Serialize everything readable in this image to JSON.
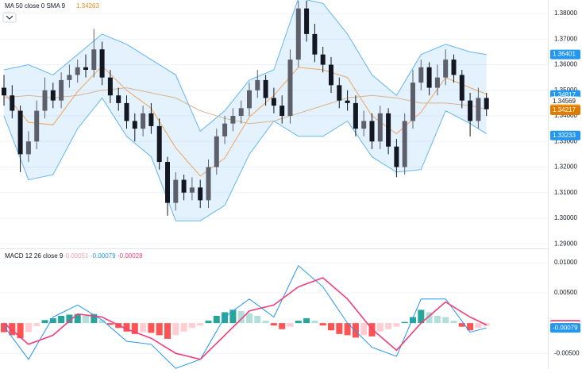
{
  "chart_data": [
    {
      "type": "candlestick",
      "title": "MA 50 close 0 SMA 9",
      "legend_value": 1.34263,
      "legend_color": "#e08a1e",
      "up_color": "#5d606b",
      "down_color": "#131722",
      "open": [
        1.351,
        1.348,
        1.342,
        1.325,
        1.33,
        1.342,
        1.35,
        1.346,
        1.354,
        1.356,
        1.359,
        1.358,
        1.366,
        1.355,
        1.348,
        1.345,
        1.338,
        1.335,
        1.341,
        1.336,
        1.322,
        1.306,
        1.315,
        1.31,
        1.312,
        1.307,
        1.32,
        1.332,
        1.337,
        1.34,
        1.343,
        1.35,
        1.354,
        1.347,
        1.344,
        1.34,
        1.362,
        1.382,
        1.372,
        1.364,
        1.36,
        1.352,
        1.346,
        1.345,
        1.335,
        1.338,
        1.33,
        1.341,
        1.328,
        1.32,
        1.338,
        1.353,
        1.359,
        1.351,
        1.355,
        1.362,
        1.356,
        1.346,
        1.338,
        1.347
      ],
      "high": [
        1.356,
        1.352,
        1.344,
        1.334,
        1.346,
        1.355,
        1.353,
        1.357,
        1.36,
        1.362,
        1.364,
        1.374,
        1.369,
        1.358,
        1.351,
        1.348,
        1.341,
        1.344,
        1.345,
        1.339,
        1.324,
        1.318,
        1.317,
        1.316,
        1.315,
        1.323,
        1.335,
        1.34,
        1.343,
        1.346,
        1.353,
        1.358,
        1.356,
        1.351,
        1.348,
        1.366,
        1.385,
        1.385,
        1.376,
        1.367,
        1.363,
        1.355,
        1.35,
        1.348,
        1.342,
        1.341,
        1.344,
        1.343,
        1.331,
        1.341,
        1.358,
        1.362,
        1.361,
        1.36,
        1.366,
        1.364,
        1.358,
        1.349,
        1.351,
        1.349
      ],
      "low": [
        1.344,
        1.339,
        1.318,
        1.322,
        1.327,
        1.339,
        1.343,
        1.343,
        1.351,
        1.353,
        1.355,
        1.355,
        1.352,
        1.345,
        1.342,
        1.335,
        1.33,
        1.332,
        1.333,
        1.319,
        1.301,
        1.303,
        1.307,
        1.307,
        1.304,
        1.304,
        1.317,
        1.329,
        1.334,
        1.337,
        1.34,
        1.347,
        1.344,
        1.341,
        1.337,
        1.337,
        1.359,
        1.369,
        1.361,
        1.357,
        1.349,
        1.343,
        1.342,
        1.332,
        1.332,
        1.327,
        1.327,
        1.325,
        1.316,
        1.317,
        1.335,
        1.35,
        1.348,
        1.348,
        1.352,
        1.353,
        1.343,
        1.332,
        1.335,
        1.34
      ],
      "close": [
        1.348,
        1.342,
        1.325,
        1.33,
        1.342,
        1.35,
        1.346,
        1.354,
        1.356,
        1.359,
        1.358,
        1.366,
        1.355,
        1.348,
        1.345,
        1.338,
        1.335,
        1.341,
        1.336,
        1.322,
        1.306,
        1.315,
        1.31,
        1.312,
        1.307,
        1.32,
        1.332,
        1.337,
        1.34,
        1.343,
        1.35,
        1.354,
        1.347,
        1.344,
        1.34,
        1.362,
        1.382,
        1.372,
        1.364,
        1.36,
        1.352,
        1.346,
        1.345,
        1.335,
        1.338,
        1.33,
        1.341,
        1.328,
        1.32,
        1.338,
        1.353,
        1.359,
        1.351,
        1.355,
        1.362,
        1.356,
        1.346,
        1.338,
        1.347,
        1.3426
      ],
      "overlays": {
        "x": [
          0,
          3,
          6,
          9,
          12,
          15,
          18,
          21,
          24,
          27,
          30,
          33,
          36,
          39,
          42,
          45,
          48,
          51,
          54,
          57,
          59
        ],
        "band_fill": "rgba(33,150,243,0.12)",
        "series": [
          {
            "color": "#64b5f6",
            "values": [
              1.358,
              1.36,
              1.356,
              1.364,
              1.372,
              1.368,
              1.362,
              1.356,
              1.334,
              1.342,
              1.354,
              1.358,
              1.386,
              1.384,
              1.372,
              1.356,
              1.348,
              1.364,
              1.368,
              1.365,
              1.364
            ]
          },
          {
            "color": "#64b5f6",
            "values": [
              1.34,
              1.315,
              1.317,
              1.335,
              1.347,
              1.332,
              1.324,
              1.299,
              1.299,
              1.305,
              1.325,
              1.338,
              1.332,
              1.332,
              1.338,
              1.324,
              1.318,
              1.319,
              1.342,
              1.337,
              1.333
            ]
          },
          {
            "color": "#f0a35e",
            "values": [
              1.349,
              1.3375,
              1.3365,
              1.3495,
              1.3595,
              1.35,
              1.343,
              1.3275,
              1.3165,
              1.3235,
              1.3395,
              1.348,
              1.359,
              1.358,
              1.355,
              1.34,
              1.333,
              1.3415,
              1.355,
              1.351,
              1.3485
            ]
          },
          {
            "color": "#d9b48f",
            "values": [
              1.347,
              1.348,
              1.347,
              1.348,
              1.35,
              1.351,
              1.349,
              1.347,
              1.342,
              1.339,
              1.337,
              1.338,
              1.341,
              1.344,
              1.347,
              1.348,
              1.347,
              1.345,
              1.345,
              1.344,
              1.3426
            ]
          }
        ]
      },
      "ylim": [
        1.2885,
        1.3853
      ],
      "yticks": [
        {
          "value": 1.38,
          "label": "1.38000"
        },
        {
          "value": 1.37,
          "label": "1.37000"
        },
        {
          "value": 1.36,
          "label": "1.36000"
        },
        {
          "value": 1.35,
          "label": "1.35000"
        },
        {
          "value": 1.34,
          "label": "1.34000"
        },
        {
          "value": 1.33,
          "label": "1.33000"
        },
        {
          "value": 1.32,
          "label": "1.32000"
        },
        {
          "value": 1.31,
          "label": "1.31000"
        },
        {
          "value": 1.3,
          "label": "1.30000"
        },
        {
          "value": 1.29,
          "label": "1.29000"
        }
      ],
      "price_labels": [
        {
          "value": 1.36401,
          "color": "#2196f3",
          "text_color": "#ffffff"
        },
        {
          "value": 1.34817,
          "color": "#2196f3",
          "text_color": "#ffffff"
        },
        {
          "value": 1.34569,
          "color": "#ffffff",
          "text_color": "#131722"
        },
        {
          "value": 1.34263,
          "color": "#f5a623",
          "text_color": "#ffffff"
        },
        {
          "value": 1.34217,
          "color": "#e07b00",
          "text_color": "#ffffff"
        },
        {
          "value": 1.33233,
          "color": "#2196f3",
          "text_color": "#ffffff"
        }
      ],
      "grid": true
    },
    {
      "type": "macd",
      "title": "MACD 12 26 close 9",
      "legend_values": [
        {
          "value": -0.00051,
          "color": "#f7a1b0"
        },
        {
          "value": -0.00079,
          "color": "#2196f3"
        },
        {
          "value": -0.00028,
          "color": "#f23d7a"
        }
      ],
      "histogram": [
        -0.0015,
        -0.002,
        -0.0025,
        -0.0015,
        -0.0005,
        0.0005,
        0.0008,
        0.0012,
        0.0014,
        0.0015,
        0.0012,
        0.0015,
        0.0005,
        -0.0003,
        -0.0008,
        -0.0014,
        -0.0018,
        -0.0015,
        -0.0016,
        -0.002,
        -0.0026,
        -0.002,
        -0.0014,
        -0.0008,
        -0.0004,
        0.0004,
        0.0012,
        0.0018,
        0.0022,
        0.002,
        0.0016,
        0.0012,
        0.0004,
        -0.0004,
        -0.001,
        -0.0006,
        0.0004,
        0.0008,
        0.0004,
        -0.0004,
        -0.0012,
        -0.0018,
        -0.002,
        -0.0024,
        -0.002,
        -0.0022,
        -0.0014,
        -0.001,
        -0.0006,
        0.0002,
        0.001,
        0.0022,
        0.0018,
        0.0012,
        0.001,
        0.0004,
        -0.0006,
        -0.0012,
        -0.0008,
        -0.0005
      ],
      "histogram_colors": {
        "up_rising": "#26a69a",
        "up_falling": "#b2dfdb",
        "down_falling": "#ff5252",
        "down_rising": "#ffcdd2"
      },
      "x": [
        0,
        3,
        6,
        9,
        12,
        15,
        18,
        21,
        24,
        27,
        30,
        33,
        36,
        39,
        42,
        45,
        48,
        51,
        54,
        57,
        59
      ],
      "series": [
        {
          "color": "#2196f3",
          "values": [
            -0.0005,
            -0.006,
            0.001,
            0.003,
            0.0005,
            -0.003,
            -0.0035,
            -0.0075,
            -0.006,
            0.001,
            0.004,
            0.001,
            0.0095,
            0.006,
            0.0,
            -0.004,
            -0.0055,
            0.004,
            0.004,
            -0.0015,
            -0.0008
          ]
        },
        {
          "color": "#f23d7a",
          "values": [
            0.0,
            -0.0035,
            -0.002,
            0.0015,
            0.001,
            -0.001,
            -0.0025,
            -0.005,
            -0.006,
            -0.002,
            0.002,
            0.003,
            0.006,
            0.0075,
            0.004,
            -0.001,
            -0.0045,
            0.0,
            0.0035,
            0.001,
            -0.0003
          ]
        }
      ],
      "ylim": [
        -0.0076,
        0.0121
      ],
      "yticks": [
        {
          "value": 0.01,
          "label": "0.01000"
        },
        {
          "value": 0.005,
          "label": "0.00500"
        },
        {
          "value": -0.005,
          "label": "-0.00500"
        }
      ],
      "price_labels": [
        {
          "value": -0.00028,
          "color": "#f23d7a",
          "text_color": "#ffffff"
        },
        {
          "value": -0.00051,
          "color": "#ffffff",
          "text_color": "#131722"
        },
        {
          "value": -0.00079,
          "color": "#2196f3",
          "text_color": "#ffffff"
        }
      ],
      "grid": true
    }
  ]
}
